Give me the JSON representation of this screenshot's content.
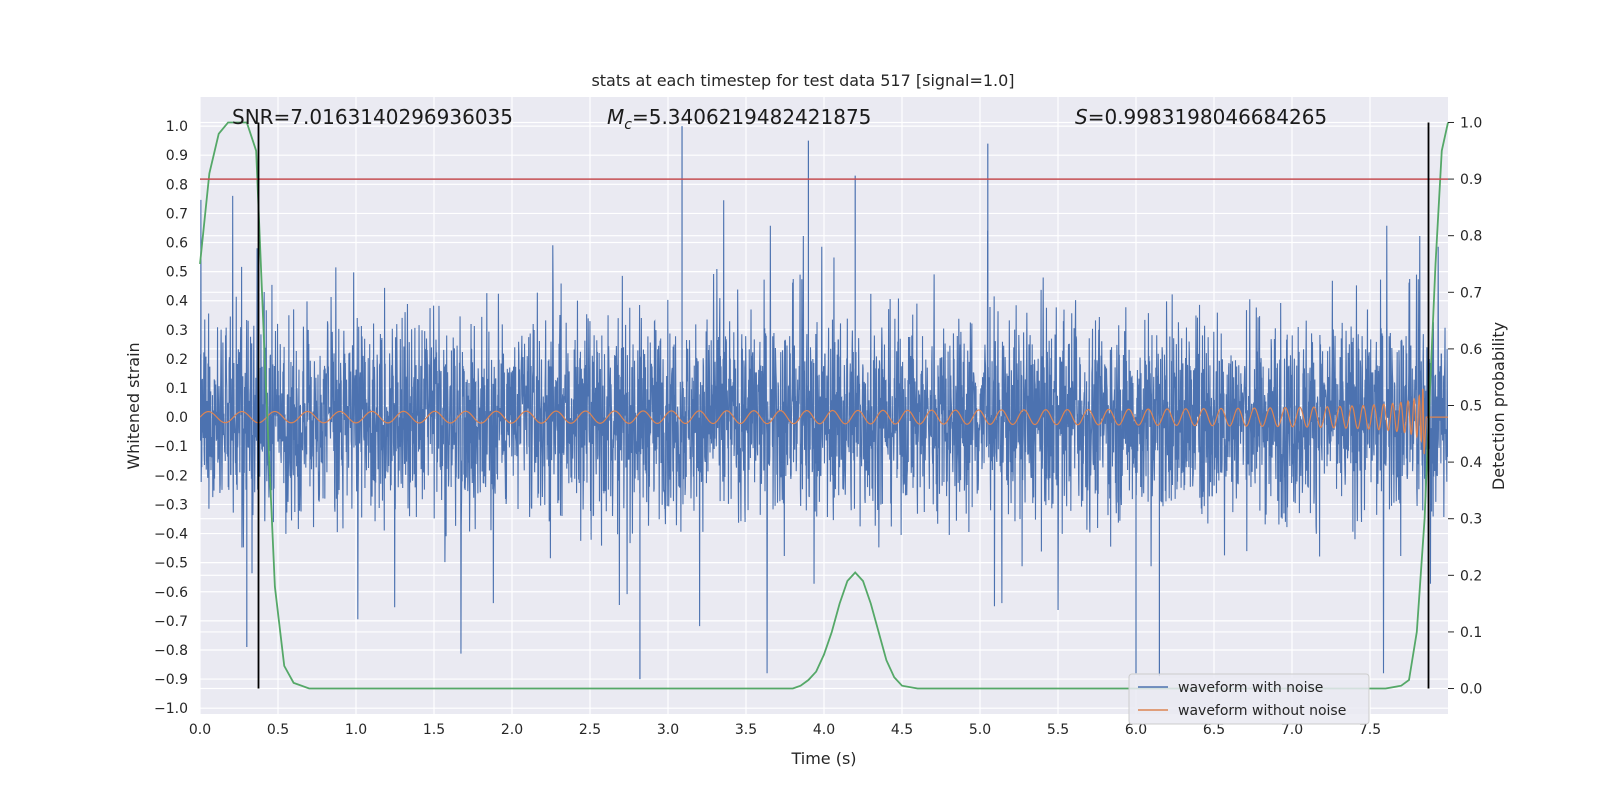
{
  "chart_data": {
    "type": "line",
    "title": "stats at each timestep for test data 517 [signal=1.0]",
    "xlabel": "Time (s)",
    "ylabel": "Whitened strain",
    "ylabel_right": "Detection probability",
    "xlim": [
      0.0,
      8.0
    ],
    "ylim": [
      -1.02,
      1.1
    ],
    "ylim_right": [
      -0.045,
      1.045
    ],
    "x_ticks": [
      "0.0",
      "0.5",
      "1.0",
      "1.5",
      "2.0",
      "2.5",
      "3.0",
      "3.5",
      "4.0",
      "4.5",
      "5.0",
      "5.5",
      "6.0",
      "6.5",
      "7.0",
      "7.5"
    ],
    "y_ticks": [
      "1.0",
      "0.9",
      "0.8",
      "0.7",
      "0.6",
      "0.5",
      "0.4",
      "0.3",
      "0.2",
      "0.1",
      "0.0",
      "−0.1",
      "−0.2",
      "−0.3",
      "−0.4",
      "−0.5",
      "−0.6",
      "−0.7",
      "−0.8",
      "−0.9",
      "−1.0"
    ],
    "y_right_ticks": [
      "1.0",
      "0.9",
      "0.8",
      "0.7",
      "0.6",
      "0.5",
      "0.4",
      "0.3",
      "0.2",
      "0.1",
      "0.0"
    ],
    "annotations": {
      "snr": "SNR=7.0163140296936035",
      "mc_symbol": "M",
      "mc_sub": "c",
      "mc_value": "=5.3406219482421875",
      "s_symbol": "S",
      "s_value": "=0.9983198046684265"
    },
    "threshold_right": 0.9,
    "vlines_x": [
      0.375,
      7.875
    ],
    "series": [
      {
        "name": "waveform with noise",
        "color": "#4c72b0",
        "noise_envelope": 0.5,
        "max_peak": 1.0,
        "min_peak": -0.9
      },
      {
        "name": "waveform without noise",
        "color": "#dd8452",
        "start_amplitude": 0.02,
        "end_amplitude": 0.12,
        "chirp_end_x": 7.85
      },
      {
        "name": "detection probability",
        "color": "#55a868",
        "axis": "right",
        "x": [
          0.0,
          0.06,
          0.12,
          0.18,
          0.24,
          0.3,
          0.36,
          0.42,
          0.48,
          0.54,
          0.6,
          0.7,
          1.0,
          2.0,
          3.0,
          3.5,
          3.7,
          3.8,
          3.85,
          3.9,
          3.95,
          4.0,
          4.05,
          4.1,
          4.15,
          4.2,
          4.25,
          4.3,
          4.35,
          4.4,
          4.45,
          4.5,
          4.6,
          5.0,
          6.0,
          7.0,
          7.6,
          7.7,
          7.75,
          7.8,
          7.85,
          7.88,
          7.92,
          7.96,
          8.0
        ],
        "y": [
          0.75,
          0.91,
          0.98,
          1.0,
          1.0,
          1.0,
          0.95,
          0.55,
          0.18,
          0.04,
          0.01,
          0.0,
          0.0,
          0.0,
          0.0,
          0.0,
          0.0,
          0.0,
          0.005,
          0.015,
          0.03,
          0.06,
          0.1,
          0.15,
          0.19,
          0.205,
          0.19,
          0.15,
          0.1,
          0.05,
          0.02,
          0.005,
          0.0,
          0.0,
          0.0,
          0.0,
          0.0,
          0.005,
          0.015,
          0.1,
          0.3,
          0.5,
          0.75,
          0.95,
          1.0
        ]
      }
    ],
    "legend": {
      "placement": "lower-right",
      "entries": [
        "waveform with noise",
        "waveform without noise"
      ]
    },
    "grid": true,
    "colors": {
      "background": "#eaeaf2",
      "grid": "#ffffff",
      "threshold": "#c44e52",
      "vline": "#000000"
    }
  }
}
